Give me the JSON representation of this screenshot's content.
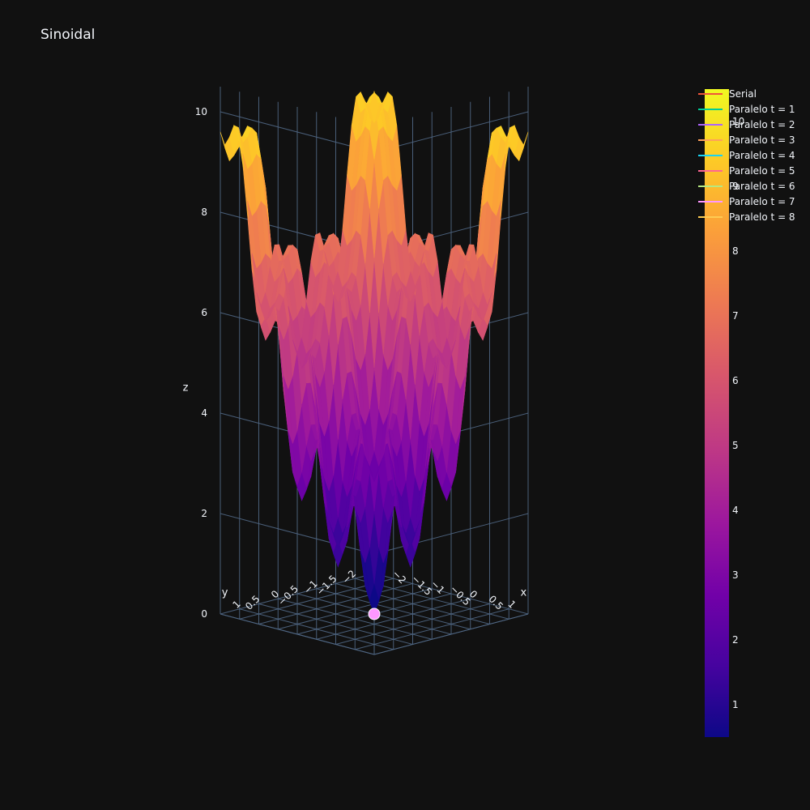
{
  "chart_data": {
    "type": "surface3d",
    "title": "Sinoidal",
    "function_note": "surface with circular ripples centered at origin",
    "x_range": [
      -2,
      2
    ],
    "y_range": [
      -2,
      2
    ],
    "z_range": [
      0,
      10.5
    ],
    "x_label": "x",
    "y_label": "y",
    "z_label": "z",
    "x_ticks": [
      "−2",
      "−1.5",
      "−1",
      "−0.5",
      "0",
      "0.5",
      "1"
    ],
    "y_ticks": [
      "−2",
      "−1.5",
      "−1",
      "−0.5",
      "0",
      "0.5",
      "1"
    ],
    "z_ticks": [
      "0",
      "2",
      "4",
      "6",
      "8",
      "10"
    ],
    "colorscale": "plasma",
    "colorbar_ticks": [
      "1",
      "2",
      "3",
      "4",
      "5",
      "6",
      "7",
      "8",
      "9",
      "10"
    ],
    "colorbar_range": [
      0.5,
      10.5
    ],
    "marker": {
      "x": 0,
      "y": 0,
      "z": 0,
      "color": "#ff97ff"
    },
    "legend_position": "top-right",
    "series": [
      {
        "name": "Serial",
        "color": "#ef553b"
      },
      {
        "name": "Paralelo t = 1",
        "color": "#00cc96"
      },
      {
        "name": "Paralelo t = 2",
        "color": "#ab63fa"
      },
      {
        "name": "Paralelo t = 3",
        "color": "#ffa15a"
      },
      {
        "name": "Paralelo t = 4",
        "color": "#19d3f3"
      },
      {
        "name": "Paralelo t = 5",
        "color": "#ff6692"
      },
      {
        "name": "Paralelo t = 6",
        "color": "#b6e880"
      },
      {
        "name": "Paralelo t = 7",
        "color": "#ff97ff"
      },
      {
        "name": "Paralelo t = 8",
        "color": "#fecb52"
      }
    ]
  }
}
